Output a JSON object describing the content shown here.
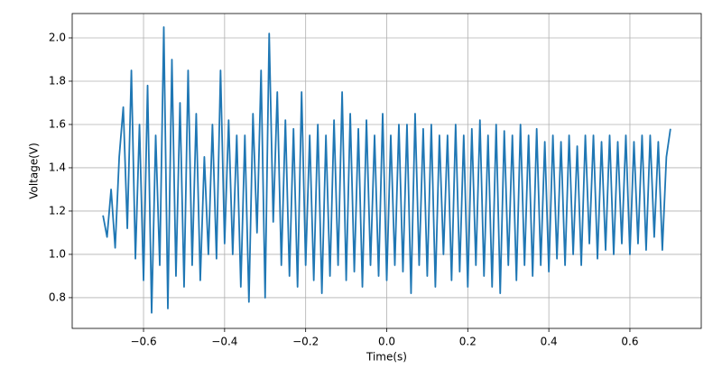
{
  "chart_data": {
    "type": "line",
    "x_label": "Time(s)",
    "y_label": "Voltage(V)",
    "color": "#1f77b4",
    "grid": true,
    "xlim": [
      -0.776,
      0.776
    ],
    "ylim": [
      0.658,
      2.1125
    ],
    "xticks": [
      {
        "value": -0.6,
        "label": "−0.6"
      },
      {
        "value": -0.4,
        "label": "−0.4"
      },
      {
        "value": -0.2,
        "label": "−0.2"
      },
      {
        "value": 0,
        "label": "0.0"
      },
      0.2,
      0.4,
      0.6
    ],
    "yticks": [
      0.8,
      {
        "value": 1,
        "label": "1.0"
      },
      1.2,
      1.4,
      1.6,
      1.8,
      {
        "value": 2,
        "label": "2.0"
      }
    ],
    "x": [
      -0.7,
      -0.69,
      -0.68,
      -0.67,
      -0.66,
      -0.65,
      -0.64,
      -0.63,
      -0.62,
      -0.61,
      -0.6,
      -0.59,
      -0.58,
      -0.57,
      -0.56,
      -0.55,
      -0.54,
      -0.53,
      -0.52,
      -0.51,
      -0.5,
      -0.49,
      -0.48,
      -0.47,
      -0.46,
      -0.45,
      -0.44,
      -0.43,
      -0.42,
      -0.41,
      -0.4,
      -0.39,
      -0.38,
      -0.37,
      -0.36,
      -0.35,
      -0.34,
      -0.33,
      -0.32,
      -0.31,
      -0.3,
      -0.29,
      -0.28,
      -0.27,
      -0.26,
      -0.25,
      -0.24,
      -0.23,
      -0.22,
      -0.21,
      -0.2,
      -0.19,
      -0.18,
      -0.17,
      -0.16,
      -0.15,
      -0.14,
      -0.13,
      -0.12,
      -0.11,
      -0.1,
      -0.09,
      -0.08,
      -0.07,
      -0.06,
      -0.05,
      -0.04,
      -0.03,
      -0.02,
      -0.01,
      0.0,
      0.01,
      0.02,
      0.03,
      0.04,
      0.05,
      0.06,
      0.07,
      0.08,
      0.09,
      0.1,
      0.11,
      0.12,
      0.13,
      0.14,
      0.15,
      0.16,
      0.17,
      0.18,
      0.19,
      0.2,
      0.21,
      0.22,
      0.23,
      0.24,
      0.25,
      0.26,
      0.27,
      0.28,
      0.29,
      0.3,
      0.31,
      0.32,
      0.33,
      0.34,
      0.35,
      0.36,
      0.37,
      0.38,
      0.39,
      0.4,
      0.41,
      0.42,
      0.43,
      0.44,
      0.45,
      0.46,
      0.47,
      0.48,
      0.49,
      0.5,
      0.51,
      0.52,
      0.53,
      0.54,
      0.55,
      0.56,
      0.57,
      0.58,
      0.59,
      0.6,
      0.61,
      0.62,
      0.63,
      0.64,
      0.65,
      0.66,
      0.67,
      0.68,
      0.69,
      0.7
    ],
    "values": [
      1.18,
      1.08,
      1.3,
      1.03,
      1.45,
      1.68,
      1.12,
      1.85,
      0.98,
      1.6,
      0.88,
      1.78,
      0.73,
      1.55,
      0.95,
      2.05,
      0.75,
      1.9,
      0.9,
      1.7,
      0.85,
      1.85,
      0.95,
      1.65,
      0.88,
      1.45,
      1.0,
      1.6,
      0.98,
      1.85,
      1.05,
      1.62,
      1.0,
      1.55,
      0.85,
      1.55,
      0.78,
      1.65,
      1.1,
      1.85,
      0.8,
      2.02,
      1.15,
      1.75,
      0.95,
      1.62,
      0.9,
      1.58,
      0.85,
      1.75,
      0.95,
      1.55,
      0.88,
      1.6,
      0.82,
      1.55,
      0.9,
      1.62,
      0.95,
      1.75,
      0.88,
      1.65,
      0.92,
      1.58,
      0.85,
      1.62,
      0.95,
      1.55,
      0.9,
      1.65,
      0.88,
      1.55,
      0.95,
      1.6,
      0.92,
      1.6,
      0.82,
      1.65,
      0.95,
      1.58,
      0.9,
      1.6,
      0.85,
      1.55,
      1.0,
      1.55,
      0.88,
      1.6,
      0.92,
      1.55,
      0.85,
      1.58,
      0.95,
      1.62,
      0.9,
      1.55,
      0.85,
      1.6,
      0.82,
      1.57,
      0.95,
      1.55,
      0.88,
      1.6,
      0.95,
      1.55,
      0.9,
      1.58,
      0.95,
      1.52,
      0.92,
      1.55,
      0.98,
      1.52,
      0.95,
      1.55,
      1.0,
      1.5,
      0.95,
      1.55,
      1.05,
      1.55,
      0.98,
      1.52,
      1.02,
      1.55,
      1.0,
      1.52,
      1.05,
      1.55,
      1.0,
      1.52,
      1.05,
      1.55,
      1.02,
      1.55,
      1.08,
      1.52,
      1.02,
      1.45,
      1.58
    ]
  }
}
